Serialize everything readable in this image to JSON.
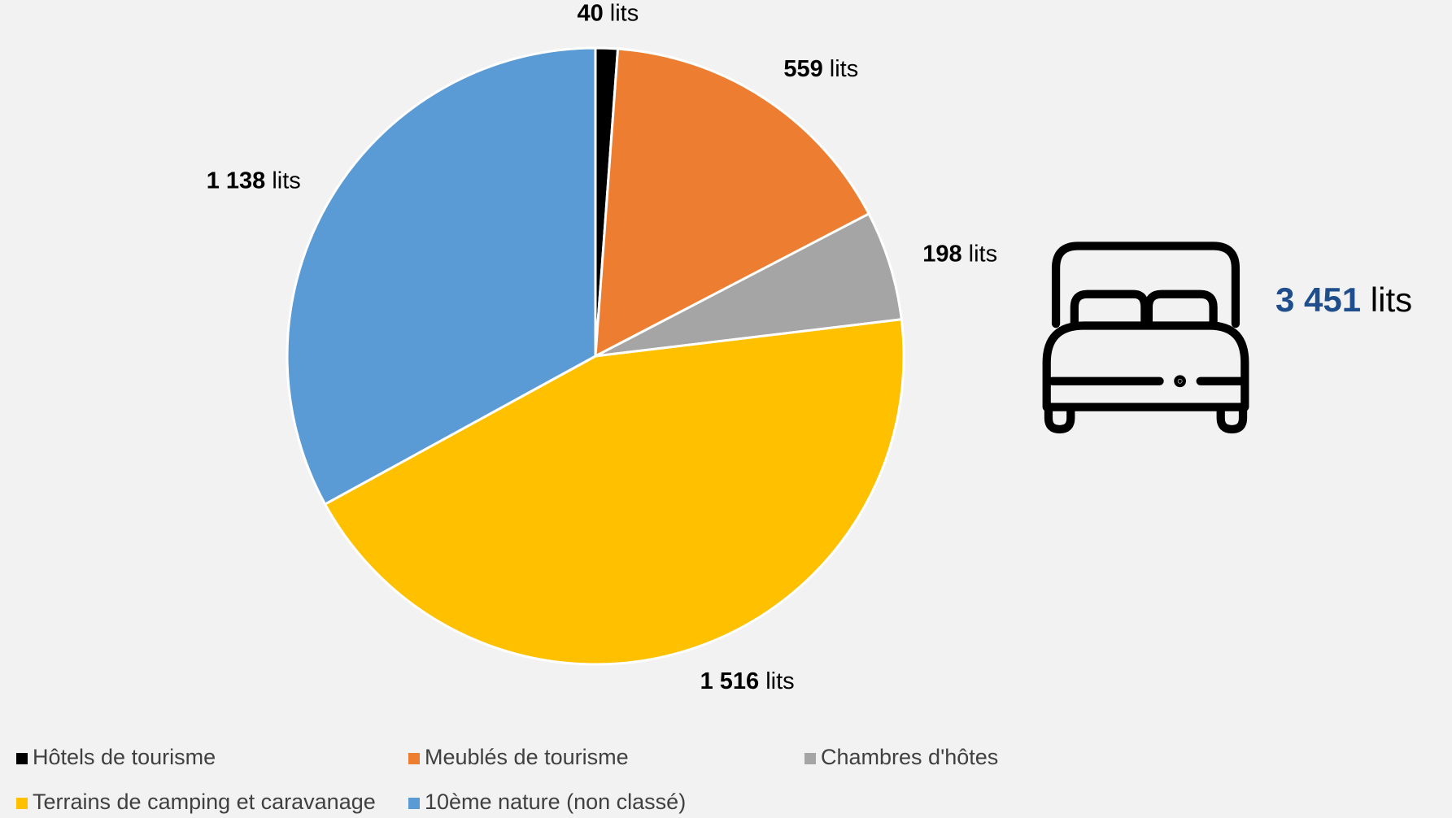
{
  "chart_data": {
    "type": "pie",
    "categories": [
      "Hôtels de tourisme",
      "Meublés de tourisme",
      "Chambres d'hôtes",
      "Terrains de camping et caravanage",
      "10ème nature (non classé)"
    ],
    "values": [
      40,
      559,
      198,
      1516,
      1138
    ],
    "value_labels": [
      "40 lits",
      "559 lits",
      "198 lits",
      "1 516 lits",
      "1 138 lits"
    ],
    "colors": [
      "#000000",
      "#ed7d31",
      "#a5a5a5",
      "#ffc000",
      "#5b9bd5"
    ],
    "total": {
      "value": 3451,
      "label": "3 451 lits"
    },
    "legend": "bottom"
  }
}
